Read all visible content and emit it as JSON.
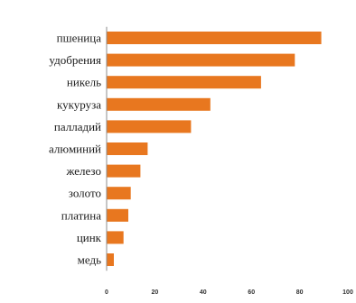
{
  "chart_data": {
    "type": "bar",
    "orientation": "horizontal",
    "categories": [
      "пшеница",
      "удобрения",
      "никель",
      "кукуруза",
      "палладий",
      "алюминий",
      "железо",
      "золото",
      "платина",
      "цинк",
      "медь"
    ],
    "values": [
      89,
      78,
      64,
      43,
      35,
      17,
      14,
      10,
      9,
      7,
      3
    ],
    "tick_labels": [
      "0",
      "20",
      "40",
      "60",
      "80",
      "100"
    ],
    "xlim": [
      0,
      100
    ],
    "grid": false,
    "bar_color": "#e8771f"
  }
}
